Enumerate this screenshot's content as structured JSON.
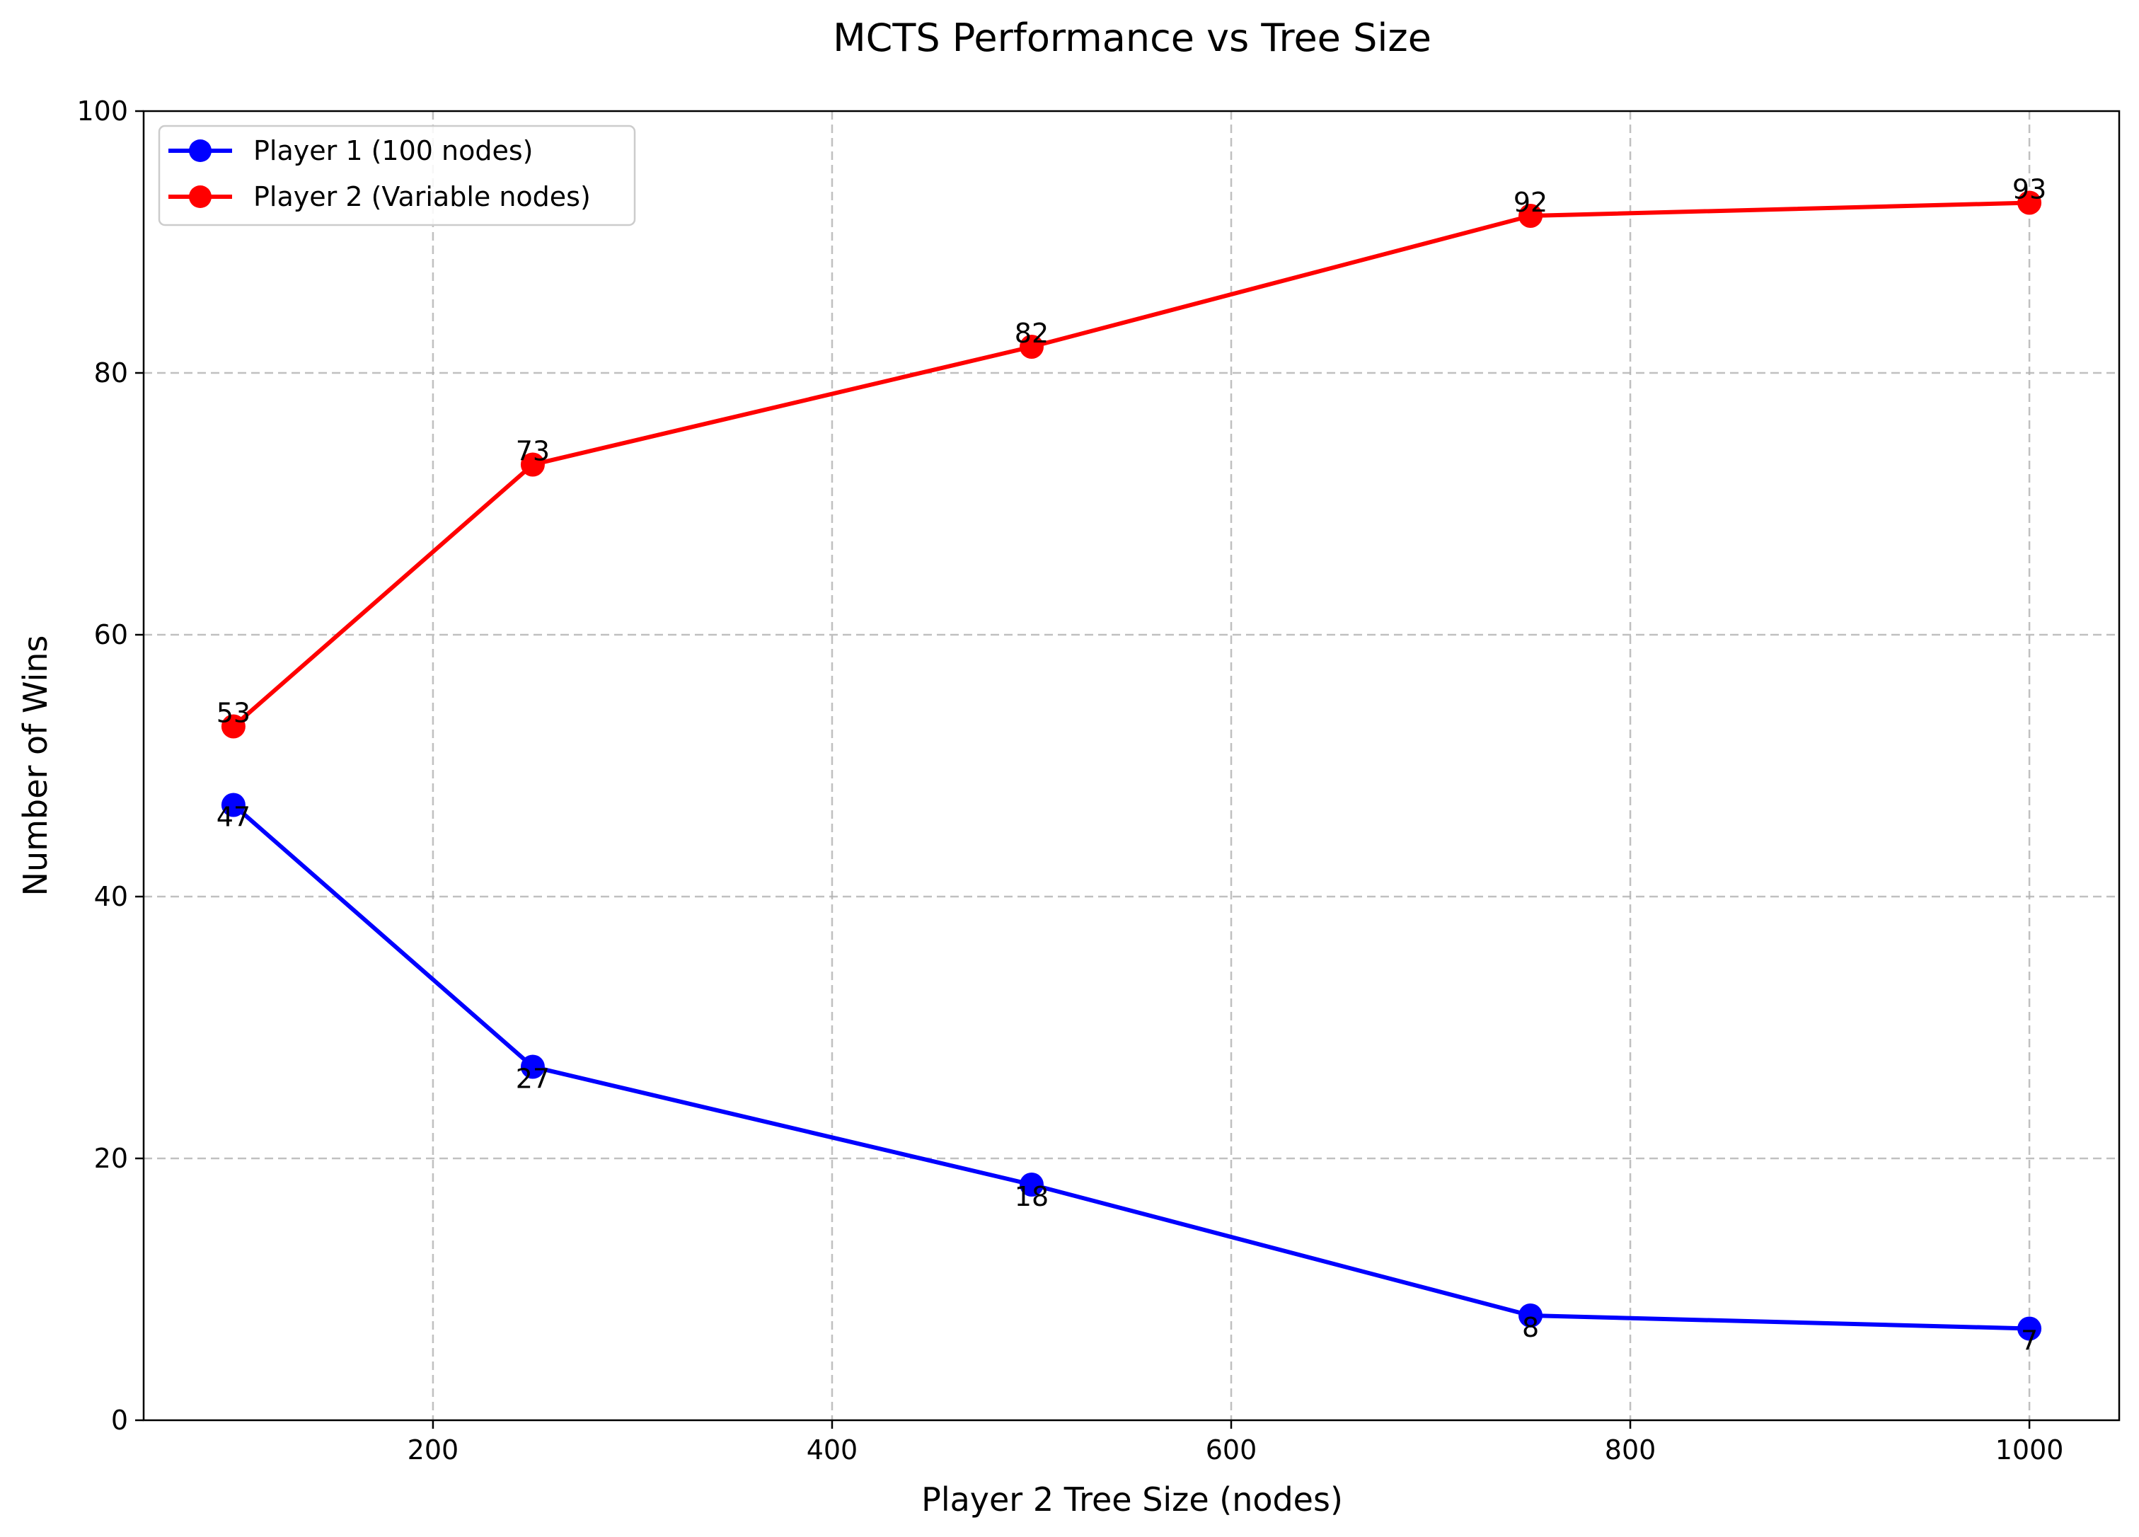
{
  "chart_data": {
    "type": "line",
    "title": "MCTS Performance vs Tree Size",
    "xlabel": "Player 2 Tree Size (nodes)",
    "ylabel": "Number of Wins",
    "x": [
      100,
      250,
      500,
      750,
      1000
    ],
    "xlim": [
      55,
      1045
    ],
    "ylim": [
      0,
      100
    ],
    "xticks": [
      200,
      400,
      600,
      800,
      1000
    ],
    "yticks": [
      0,
      20,
      40,
      60,
      80,
      100
    ],
    "grid": true,
    "legend_position": "upper-left",
    "series": [
      {
        "name": "Player 1 (100 nodes)",
        "color": "#0000ff",
        "values": [
          47,
          27,
          18,
          8,
          7
        ],
        "label_position": "below"
      },
      {
        "name": "Player 2 (Variable nodes)",
        "color": "#ff0000",
        "values": [
          53,
          73,
          82,
          92,
          93
        ],
        "label_position": "above"
      }
    ]
  }
}
